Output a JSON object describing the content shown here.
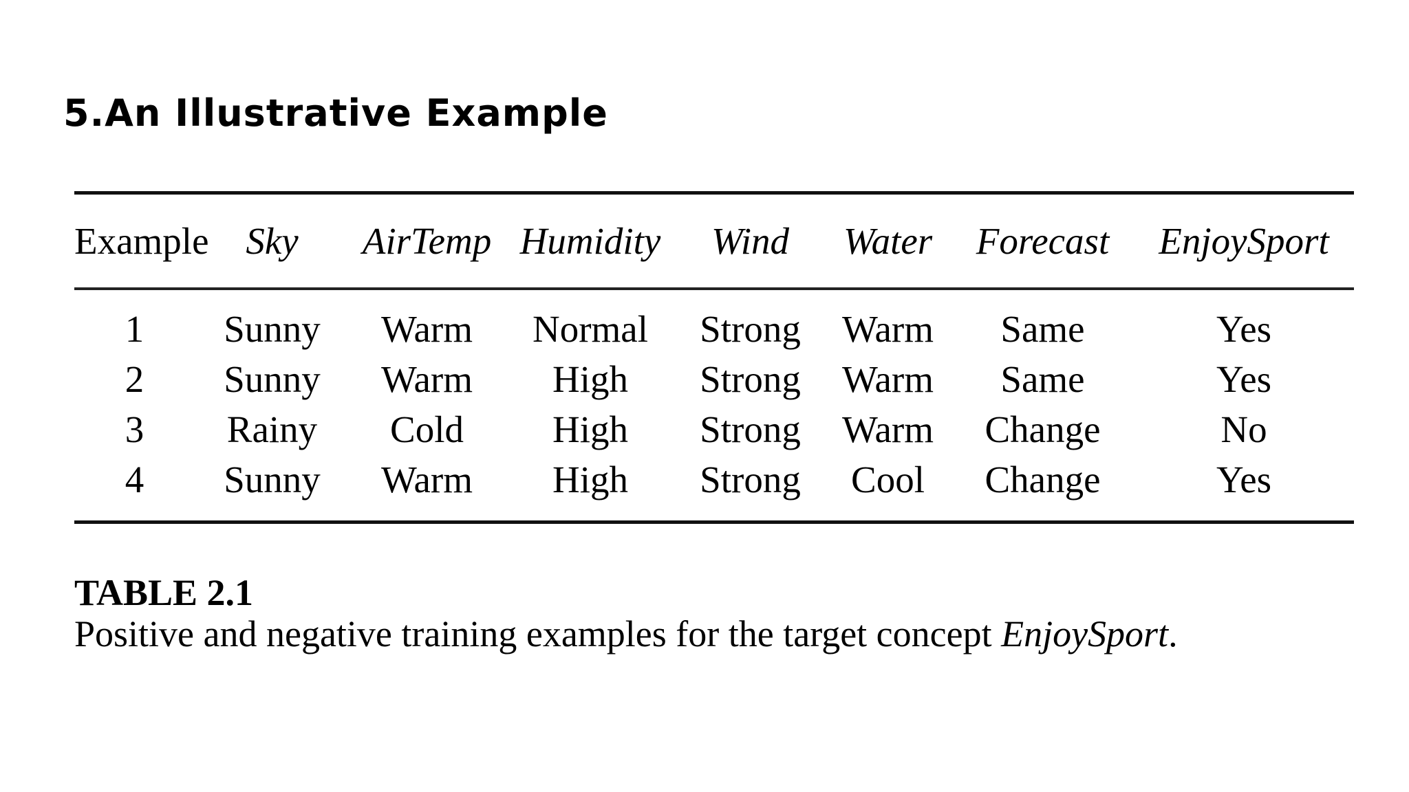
{
  "slide": {
    "title": "5.An Illustrative Example"
  },
  "table": {
    "columns": [
      "Example",
      "Sky",
      "AirTemp",
      "Humidity",
      "Wind",
      "Water",
      "Forecast",
      "EnjoySport"
    ],
    "rows": [
      [
        "1",
        "Sunny",
        "Warm",
        "Normal",
        "Strong",
        "Warm",
        "Same",
        "Yes"
      ],
      [
        "2",
        "Sunny",
        "Warm",
        "High",
        "Strong",
        "Warm",
        "Same",
        "Yes"
      ],
      [
        "3",
        "Rainy",
        "Cold",
        "High",
        "Strong",
        "Warm",
        "Change",
        "No"
      ],
      [
        "4",
        "Sunny",
        "Warm",
        "High",
        "Strong",
        "Cool",
        "Change",
        "Yes"
      ]
    ]
  },
  "caption": {
    "label": "TABLE 2.1",
    "text_prefix": "Positive and negative training examples for the target concept ",
    "text_concept": "EnjoySport",
    "text_suffix": "."
  }
}
